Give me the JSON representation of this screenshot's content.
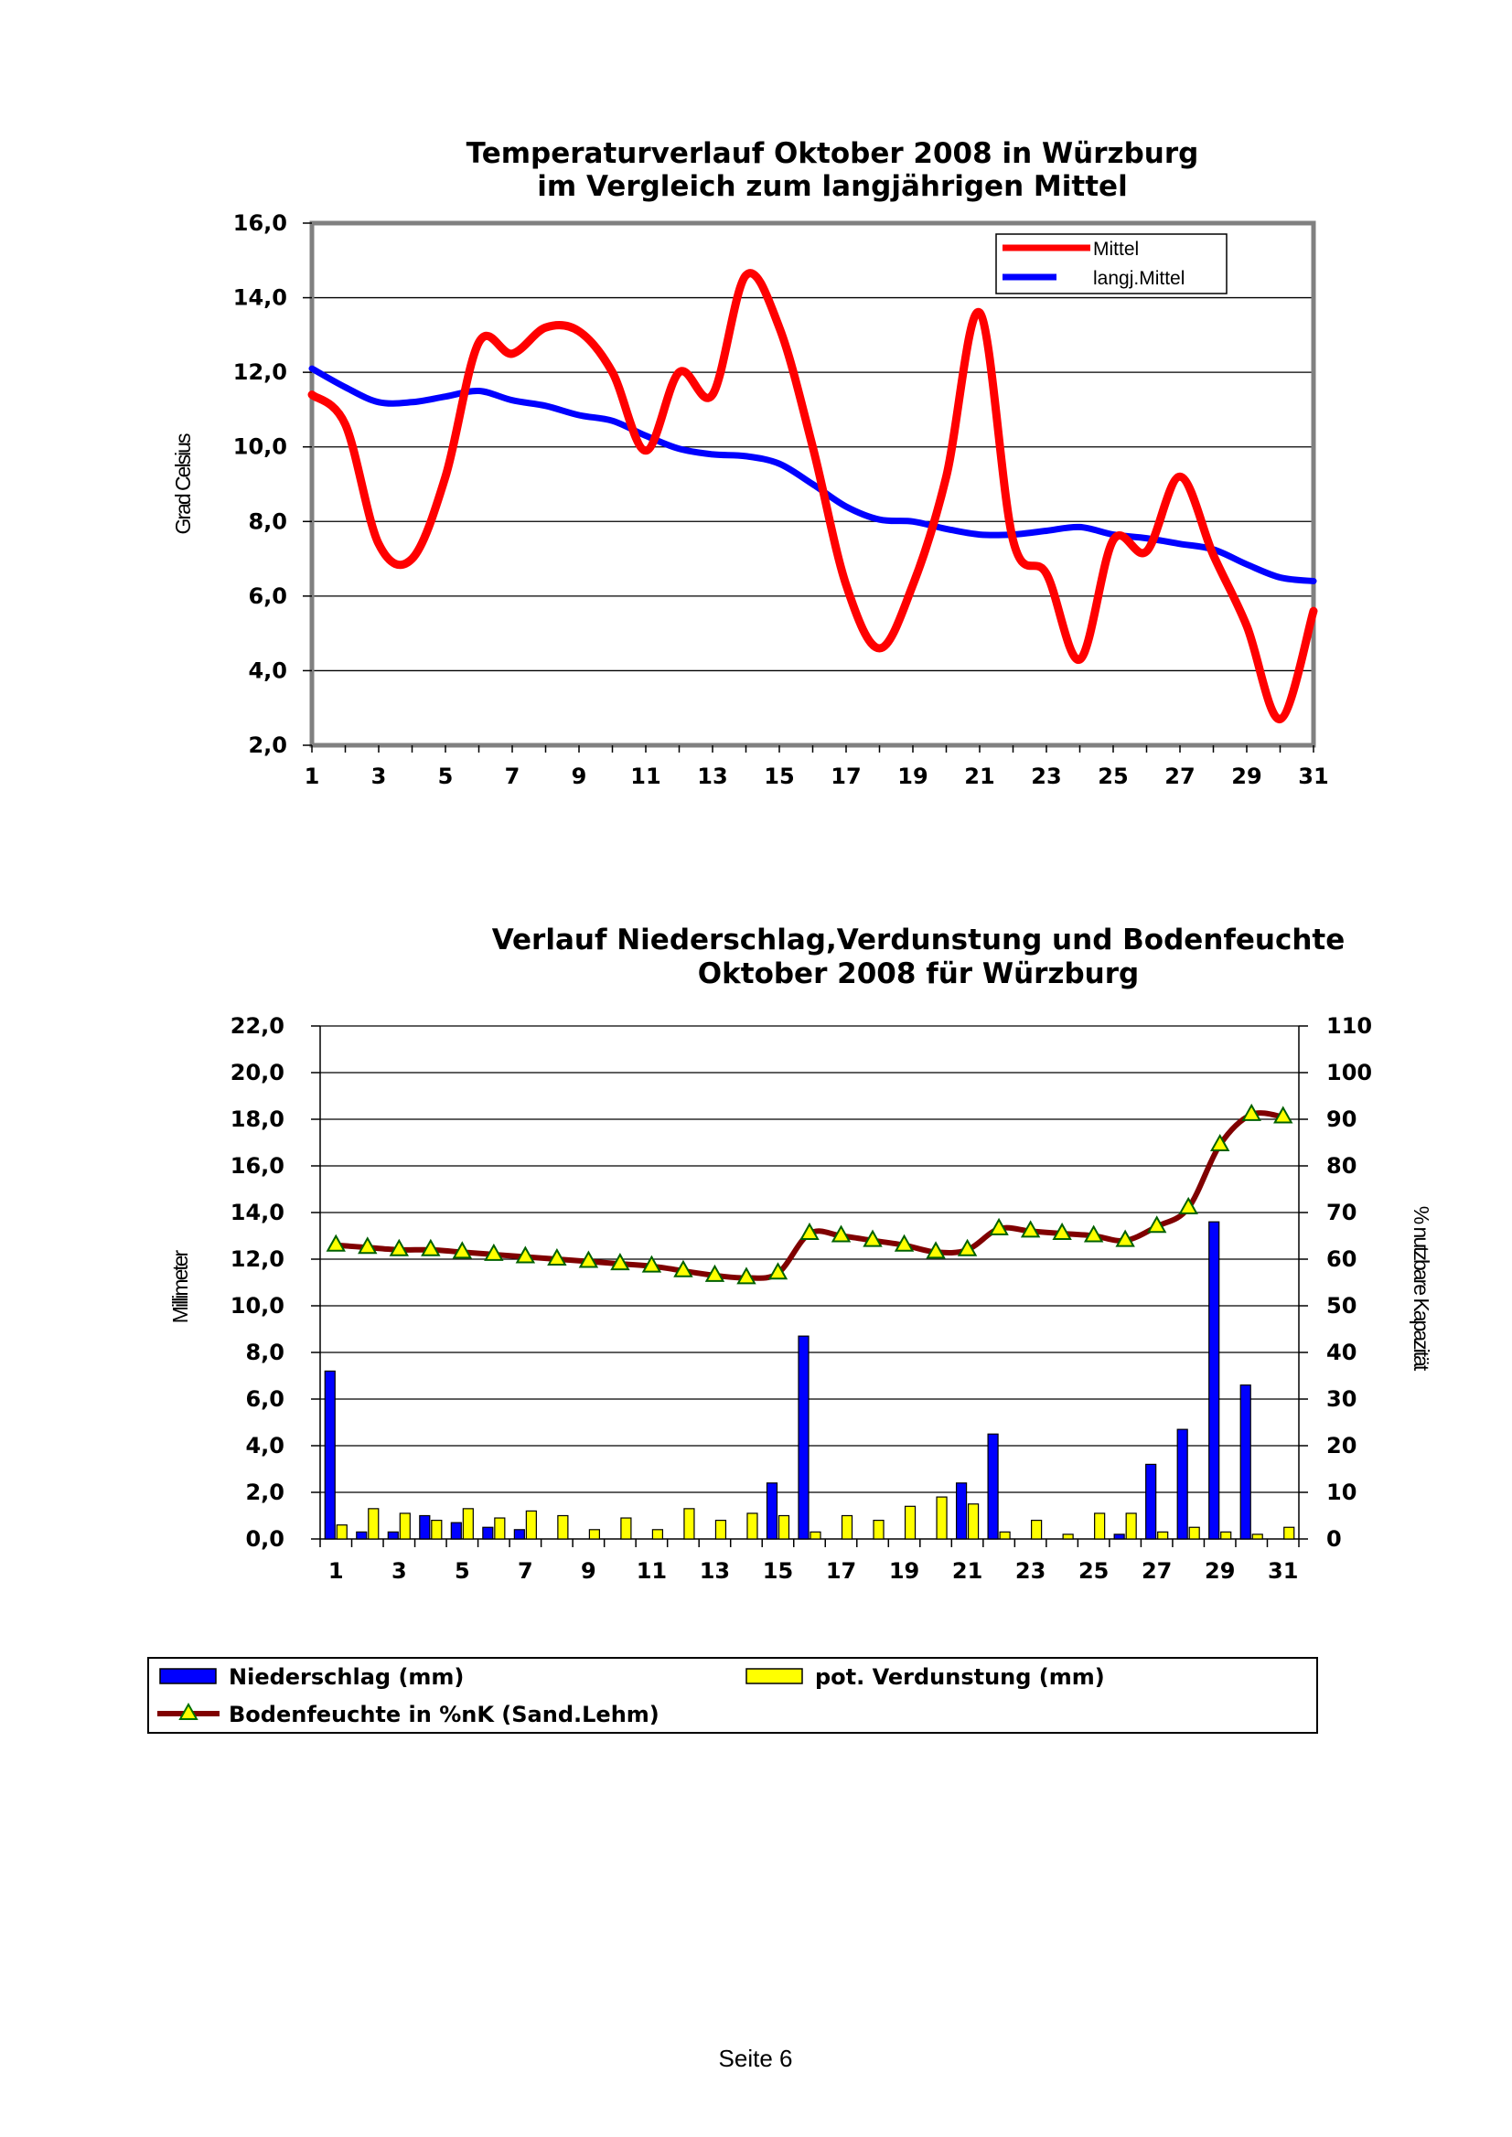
{
  "page_label": "Seite 6",
  "chart_data": [
    {
      "type": "line",
      "title": [
        "Temperaturverlauf Oktober 2008 in Würzburg",
        "im Vergleich zum langjährigen Mittel"
      ],
      "xlabel": "",
      "ylabel": "Grad Celsius",
      "x": [
        1,
        2,
        3,
        4,
        5,
        6,
        7,
        8,
        9,
        10,
        11,
        12,
        13,
        14,
        15,
        16,
        17,
        18,
        19,
        20,
        21,
        22,
        23,
        24,
        25,
        26,
        27,
        28,
        29,
        30,
        31
      ],
      "x_tick_labels": [
        "1",
        "3",
        "5",
        "7",
        "9",
        "11",
        "13",
        "15",
        "17",
        "19",
        "21",
        "23",
        "25",
        "27",
        "29",
        "31"
      ],
      "ylim": [
        2,
        16
      ],
      "y_tick_labels": [
        "2,0",
        "4,0",
        "6,0",
        "8,0",
        "10,0",
        "12,0",
        "14,0",
        "16,0"
      ],
      "grid": true,
      "legend_position": "top-right",
      "series": [
        {
          "name": "Mittel",
          "color": "#ff0000",
          "values": [
            11.4,
            10.6,
            7.4,
            7.0,
            9.2,
            12.8,
            12.5,
            13.2,
            13.1,
            12.0,
            9.9,
            12.0,
            11.4,
            14.6,
            13.2,
            10.0,
            6.3,
            4.6,
            6.3,
            9.2,
            13.6,
            7.5,
            6.6,
            4.3,
            7.5,
            7.2,
            9.2,
            7.1,
            5.2,
            2.7,
            5.6
          ]
        },
        {
          "name": "langj.Mittel",
          "color": "#0000ff",
          "values": [
            12.1,
            11.6,
            11.2,
            11.2,
            11.35,
            11.5,
            11.25,
            11.1,
            10.85,
            10.7,
            10.3,
            9.95,
            9.8,
            9.75,
            9.55,
            9.0,
            8.4,
            8.05,
            8.0,
            7.8,
            7.65,
            7.65,
            7.75,
            7.85,
            7.65,
            7.55,
            7.4,
            7.25,
            6.85,
            6.5,
            6.4
          ]
        }
      ]
    },
    {
      "type": "bar",
      "title": [
        "Verlauf Niederschlag,Verdunstung und Bodenfeuchte",
        "Oktober 2008 für Würzburg"
      ],
      "xlabel": "",
      "ylabel": "Millimeter",
      "ylabel_right": "% nutzbare Kapazität",
      "categories": [
        1,
        2,
        3,
        4,
        5,
        6,
        7,
        8,
        9,
        10,
        11,
        12,
        13,
        14,
        15,
        16,
        17,
        18,
        19,
        20,
        21,
        22,
        23,
        24,
        25,
        26,
        27,
        28,
        29,
        30,
        31
      ],
      "x_tick_labels": [
        "1",
        "3",
        "5",
        "7",
        "9",
        "11",
        "13",
        "15",
        "17",
        "19",
        "21",
        "23",
        "25",
        "27",
        "29",
        "31"
      ],
      "ylim": [
        0,
        22
      ],
      "y_tick_labels": [
        "0,0",
        "2,0",
        "4,0",
        "6,0",
        "8,0",
        "10,0",
        "12,0",
        "14,0",
        "16,0",
        "18,0",
        "20,0",
        "22,0"
      ],
      "ylim_right": [
        0,
        110
      ],
      "y_right_tick_labels": [
        "0",
        "10",
        "20",
        "30",
        "40",
        "50",
        "60",
        "70",
        "80",
        "90",
        "100",
        "110"
      ],
      "grid": true,
      "legend_position": "bottom",
      "series": [
        {
          "name": "Niederschlag (mm)",
          "color": "#0000ff",
          "type": "bar",
          "values": [
            7.2,
            0.3,
            0.3,
            1.0,
            0.7,
            0.5,
            0.4,
            0,
            0,
            0,
            0,
            0,
            0,
            0,
            2.4,
            8.7,
            0,
            0,
            0,
            0,
            2.4,
            4.5,
            0,
            0,
            0,
            0.2,
            3.2,
            4.7,
            13.6,
            6.6,
            0
          ]
        },
        {
          "name": "pot. Verdunstung (mm)",
          "color": "#ffff00",
          "type": "bar",
          "values": [
            0.6,
            1.3,
            1.1,
            0.8,
            1.3,
            0.9,
            1.2,
            1.0,
            0.4,
            0.9,
            0.4,
            1.3,
            0.8,
            1.1,
            1.0,
            0.3,
            1.0,
            0.8,
            1.4,
            1.8,
            1.5,
            0.3,
            0.8,
            0.2,
            1.1,
            1.1,
            0.3,
            0.5,
            0.3,
            0.2,
            0.5
          ]
        },
        {
          "name": "Bodenfeuchte in %nK (Sand.Lehm)",
          "color": "#800000",
          "marker_color": "#ffff00",
          "type": "line",
          "axis": "right",
          "values": [
            63,
            62.5,
            62,
            62,
            61.5,
            61,
            60.5,
            60,
            59.5,
            59,
            58.5,
            57.5,
            56.5,
            56,
            57,
            65.5,
            65,
            64,
            63,
            61.5,
            62,
            66.5,
            66,
            65.5,
            65,
            64,
            67,
            71,
            84.5,
            91,
            90.5
          ]
        }
      ]
    }
  ]
}
